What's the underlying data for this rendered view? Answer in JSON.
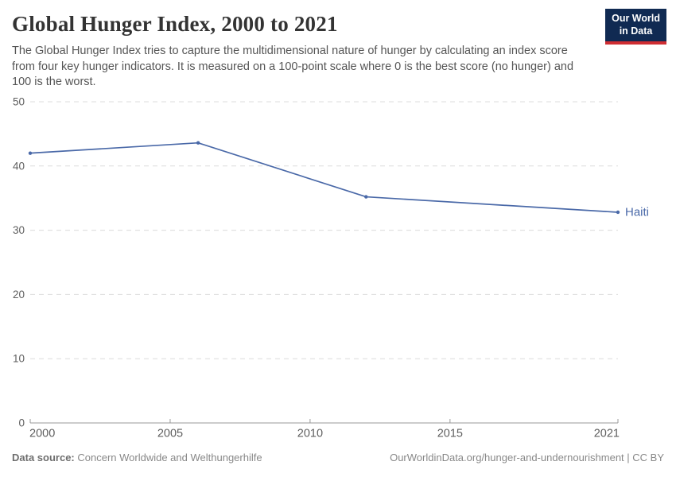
{
  "header": {
    "title": "Global Hunger Index, 2000 to 2021",
    "subtitle": "The Global Hunger Index tries to capture the multidimensional nature of hunger by calculating an index score from four key hunger indicators. It is measured on a 100-point scale where 0 is the best score (no hunger) and 100 is the worst.",
    "logo_line1": "Our World",
    "logo_line2": "in Data"
  },
  "chart_data": {
    "type": "line",
    "title": "Global Hunger Index, 2000 to 2021",
    "xlabel": "",
    "ylabel": "",
    "xlim": [
      2000,
      2021
    ],
    "ylim": [
      0,
      50
    ],
    "xticks": [
      2000,
      2005,
      2010,
      2015,
      2021
    ],
    "yticks": [
      0,
      10,
      20,
      30,
      40,
      50
    ],
    "grid": "horizontal-dashed",
    "legend": "end-of-line-label",
    "series": [
      {
        "name": "Haiti",
        "color": "#4a69a8",
        "x": [
          2000,
          2006,
          2012,
          2021
        ],
        "values": [
          42.0,
          43.6,
          35.2,
          32.8
        ]
      }
    ]
  },
  "footer": {
    "datasource_label": "Data source:",
    "datasource_value": "Concern Worldwide and Welthungerhilfe",
    "url_text": "OurWorldinData.org/hunger-and-undernourishment | CC BY"
  },
  "colors": {
    "accent_line": "#4a69a8",
    "logo_bg": "#102A52",
    "logo_stripe": "#CF2D32",
    "grid": "#dcdcdc",
    "axis": "#999999",
    "tick_label": "#5f5f5f",
    "title_text": "#333333",
    "subtitle_text": "#555555",
    "footer_text": "#888888"
  }
}
